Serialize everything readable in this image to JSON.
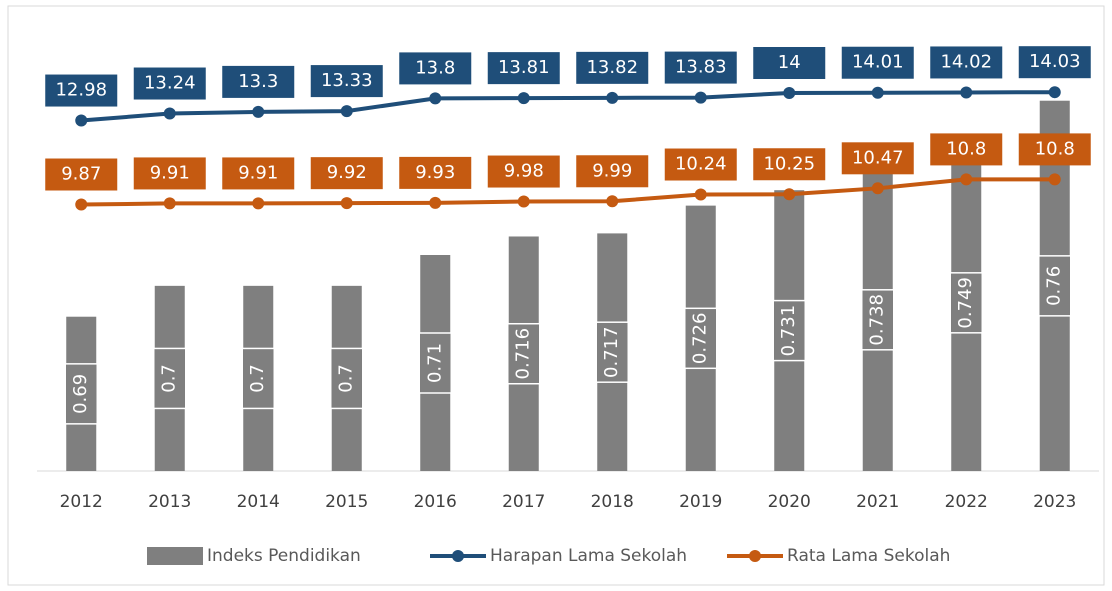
{
  "chart_data": {
    "type": "bar-line",
    "categories": [
      "2012",
      "2013",
      "2014",
      "2015",
      "2016",
      "2017",
      "2018",
      "2019",
      "2020",
      "2021",
      "2022",
      "2023"
    ],
    "series": [
      {
        "name": "Indeks Pendidikan",
        "type": "bar",
        "color": "#7f7f7f",
        "values": [
          0.69,
          0.7,
          0.7,
          0.7,
          0.71,
          0.716,
          0.717,
          0.726,
          0.731,
          0.738,
          0.749,
          0.76
        ]
      },
      {
        "name": "Harapan Lama Sekolah",
        "type": "line",
        "axis": "y2",
        "color": "#1f4e79",
        "values": [
          12.98,
          13.24,
          13.3,
          13.33,
          13.8,
          13.81,
          13.82,
          13.83,
          14,
          14.01,
          14.02,
          14.03
        ]
      },
      {
        "name": "Rata Lama Sekolah",
        "type": "line",
        "axis": "y2",
        "color": "#c55a11",
        "values": [
          9.87,
          9.91,
          9.91,
          9.92,
          9.93,
          9.98,
          9.99,
          10.24,
          10.25,
          10.47,
          10.8,
          10.8
        ]
      }
    ],
    "ylim": [
      0.64,
      0.78
    ],
    "y2lim": [
      0,
      16
    ],
    "legend": "bottom"
  }
}
